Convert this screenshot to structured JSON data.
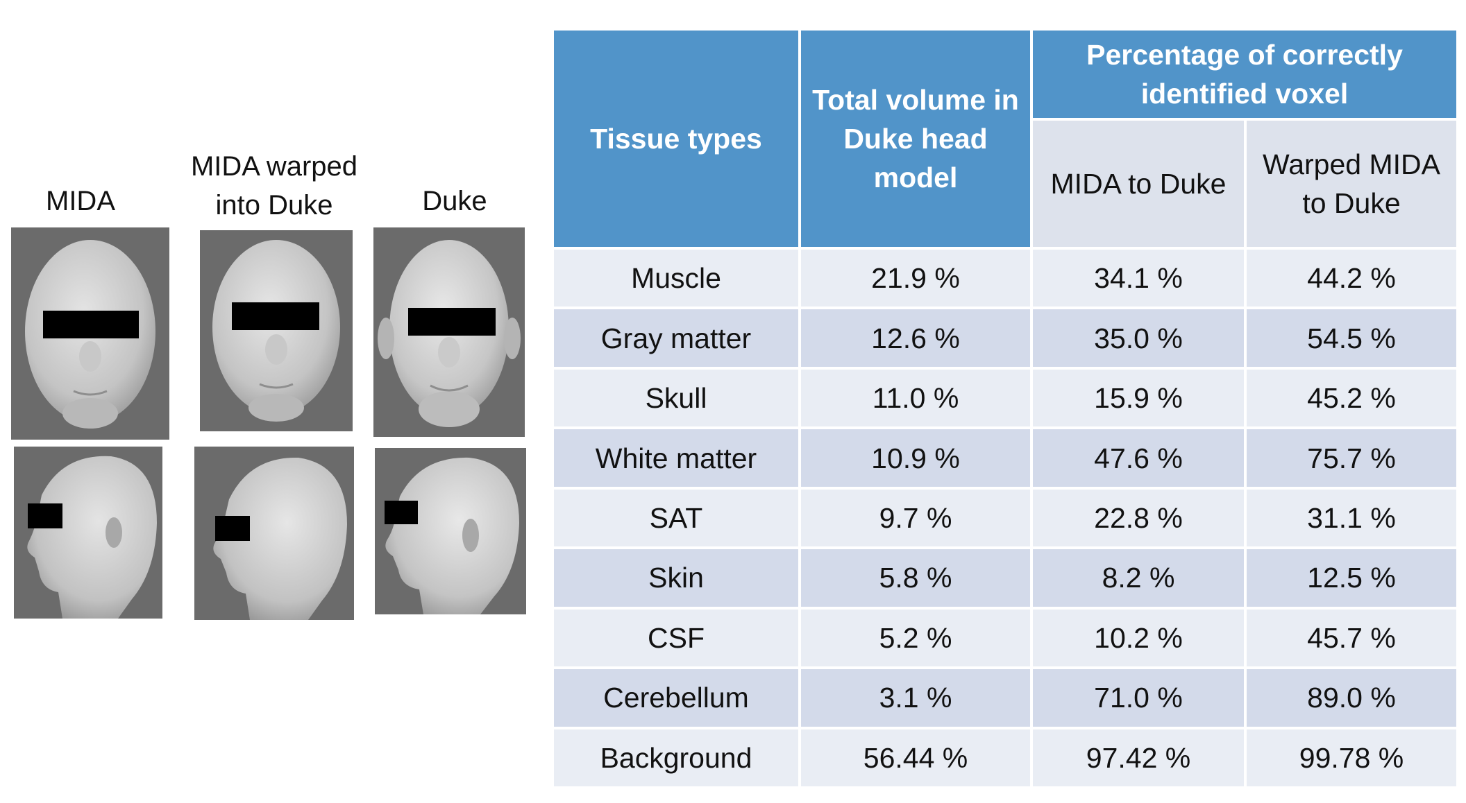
{
  "figure": {
    "columns": [
      {
        "label": "MIDA"
      },
      {
        "label": "MIDA warped\ninto Duke"
      },
      {
        "label": "Duke"
      }
    ],
    "views": [
      "front",
      "side"
    ],
    "colors": {
      "panel_bg": "#6b6b6b",
      "head_fill": "#cfcfcf",
      "censor_bar": "#000000"
    }
  },
  "table": {
    "colors": {
      "header_bg": "#5194c9",
      "header_text": "#ffffff",
      "subheader_bg": "#dde2ec",
      "row_light": "#e9edf4",
      "row_dark": "#d3daea"
    },
    "header": {
      "tissue_types": "Tissue types",
      "total_volume": "Total volume in Duke head model",
      "percentage_group": "Percentage of correctly identified voxel",
      "mida_to_duke": "MIDA to Duke",
      "warped_mida_to_duke": "Warped MIDA to Duke"
    },
    "rows": [
      {
        "tissue": "Muscle",
        "volume": "21.9 %",
        "mida": "34.1 %",
        "warped": "44.2 %"
      },
      {
        "tissue": "Gray matter",
        "volume": "12.6 %",
        "mida": "35.0 %",
        "warped": "54.5 %"
      },
      {
        "tissue": "Skull",
        "volume": "11.0 %",
        "mida": "15.9 %",
        "warped": "45.2 %"
      },
      {
        "tissue": "White matter",
        "volume": "10.9 %",
        "mida": "47.6 %",
        "warped": "75.7 %"
      },
      {
        "tissue": "SAT",
        "volume": "9.7 %",
        "mida": "22.8 %",
        "warped": "31.1 %"
      },
      {
        "tissue": "Skin",
        "volume": "5.8 %",
        "mida": "8.2 %",
        "warped": "12.5 %"
      },
      {
        "tissue": "CSF",
        "volume": "5.2 %",
        "mida": "10.2 %",
        "warped": "45.7 %"
      },
      {
        "tissue": "Cerebellum",
        "volume": "3.1 %",
        "mida": "71.0 %",
        "warped": "89.0 %"
      },
      {
        "tissue": "Background",
        "volume": "56.44 %",
        "mida": "97.42 %",
        "warped": "99.78 %"
      }
    ]
  }
}
